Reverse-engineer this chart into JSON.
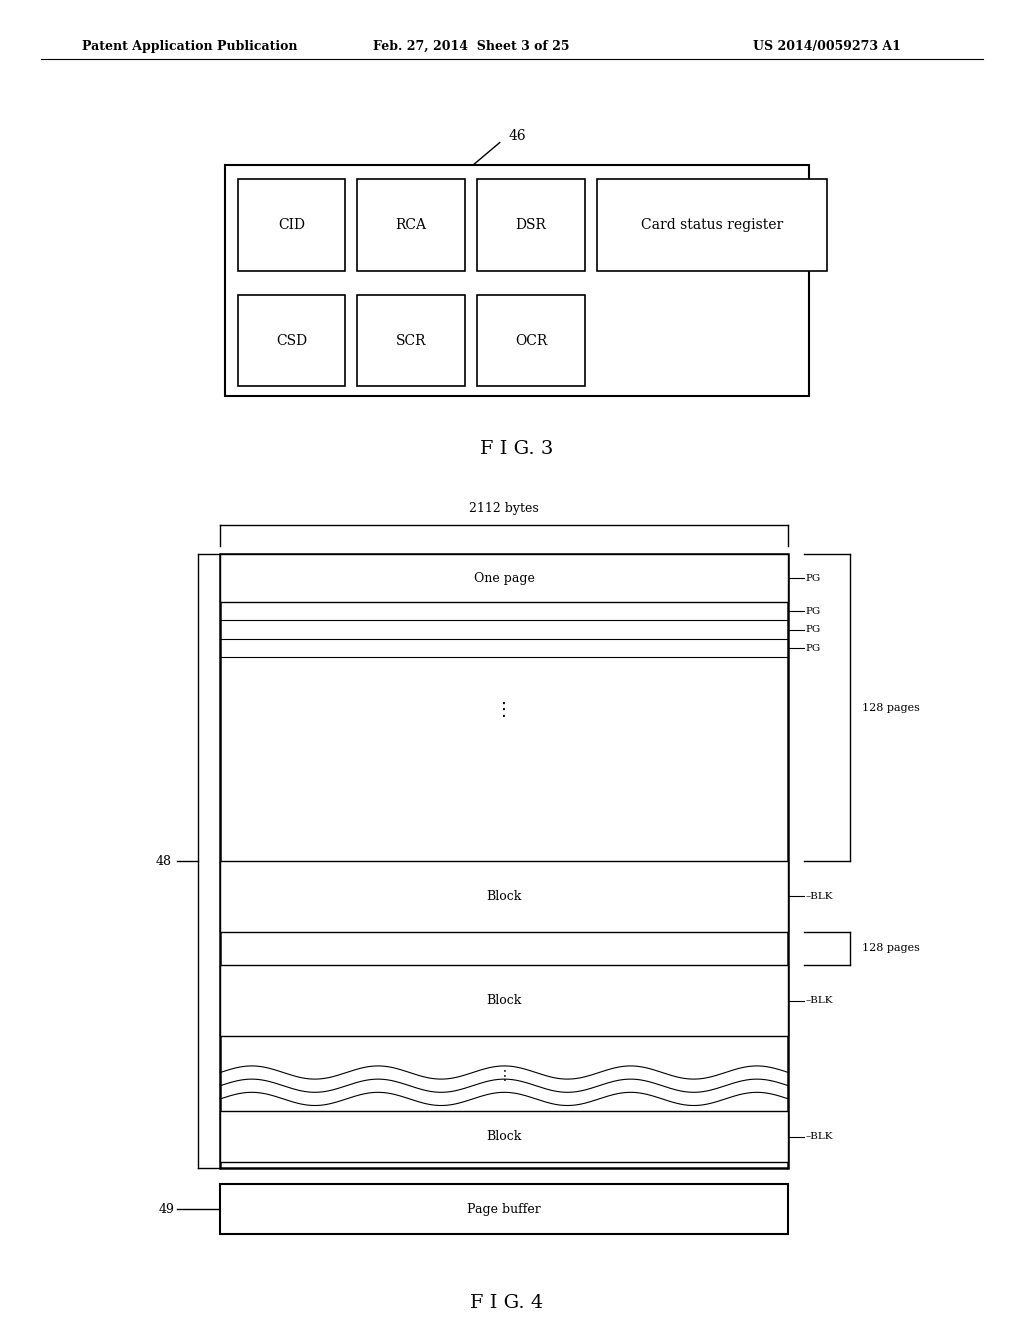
{
  "bg_color": "#ffffff",
  "header_left": "Patent Application Publication",
  "header_mid": "Feb. 27, 2014  Sheet 3 of 25",
  "header_right": "US 2014/0059273 A1",
  "fig3_label": "46",
  "fig3_caption": "F I G. 3",
  "fig3_row1_items": [
    "CID",
    "RCA",
    "DSR",
    "Card status register"
  ],
  "fig3_row2_items": [
    "CSD",
    "SCR",
    "OCR"
  ],
  "fig4_label_48": "48",
  "fig4_label_49": "49",
  "fig4_caption": "F I G. 4",
  "fig4_brace_label": "2112 bytes"
}
